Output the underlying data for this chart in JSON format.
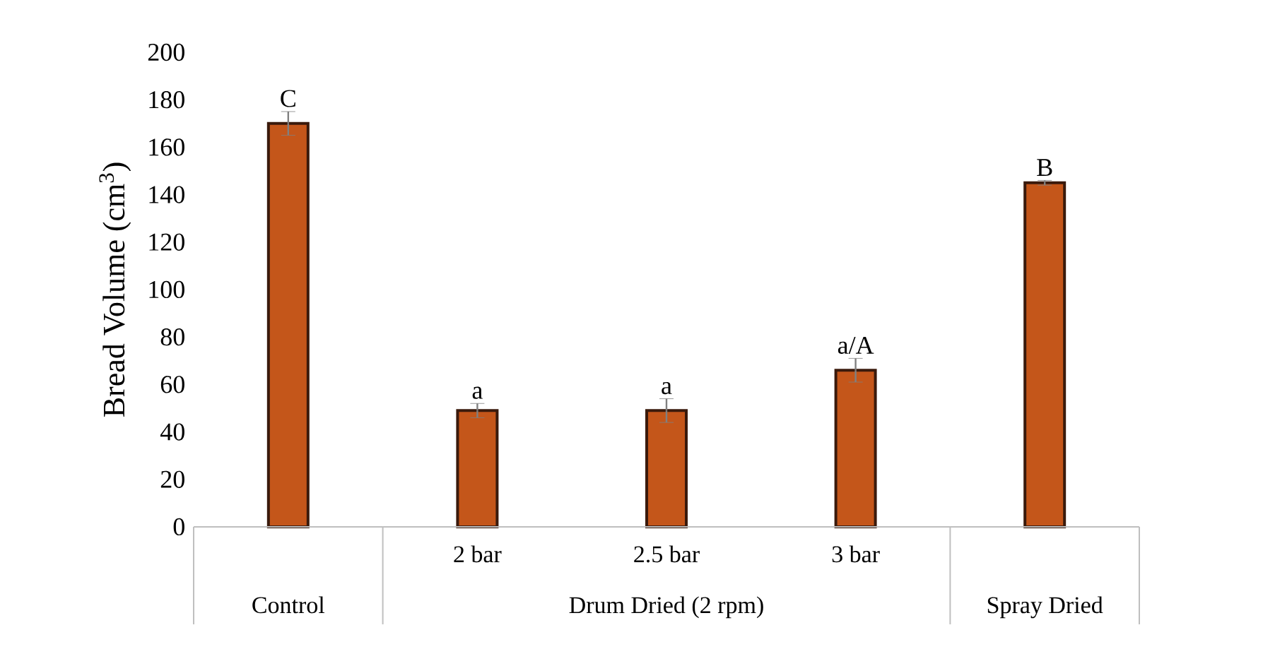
{
  "chart_data": {
    "type": "bar",
    "ylabel": "Bread Volume (cm$^{3}$)",
    "categories": [
      "Control",
      "2 bar",
      "2.5 bar",
      "3 bar",
      "Spray Dried"
    ],
    "values": [
      170,
      49,
      49,
      66,
      145
    ],
    "errors": [
      5,
      3,
      5,
      5,
      1
    ],
    "color": "#c4561a",
    "ylim": [
      0,
      200
    ],
    "yticks": [
      0,
      20,
      40,
      60,
      80,
      100,
      120,
      140,
      160,
      180,
      200
    ],
    "grid": false,
    "annotations": [
      {
        "text": "C",
        "x": "Control",
        "y": 175
      },
      {
        "text": "a",
        "x": "2 bar",
        "y": 52
      },
      {
        "text": "a",
        "x": "2.5 bar",
        "y": 54
      },
      {
        "text": "a/A",
        "x": "3 bar",
        "y": 71
      },
      {
        "text": "B",
        "x": "Spray Dried",
        "y": 146
      },
      "Drum Dried (2 rpm)"
    ]
  }
}
